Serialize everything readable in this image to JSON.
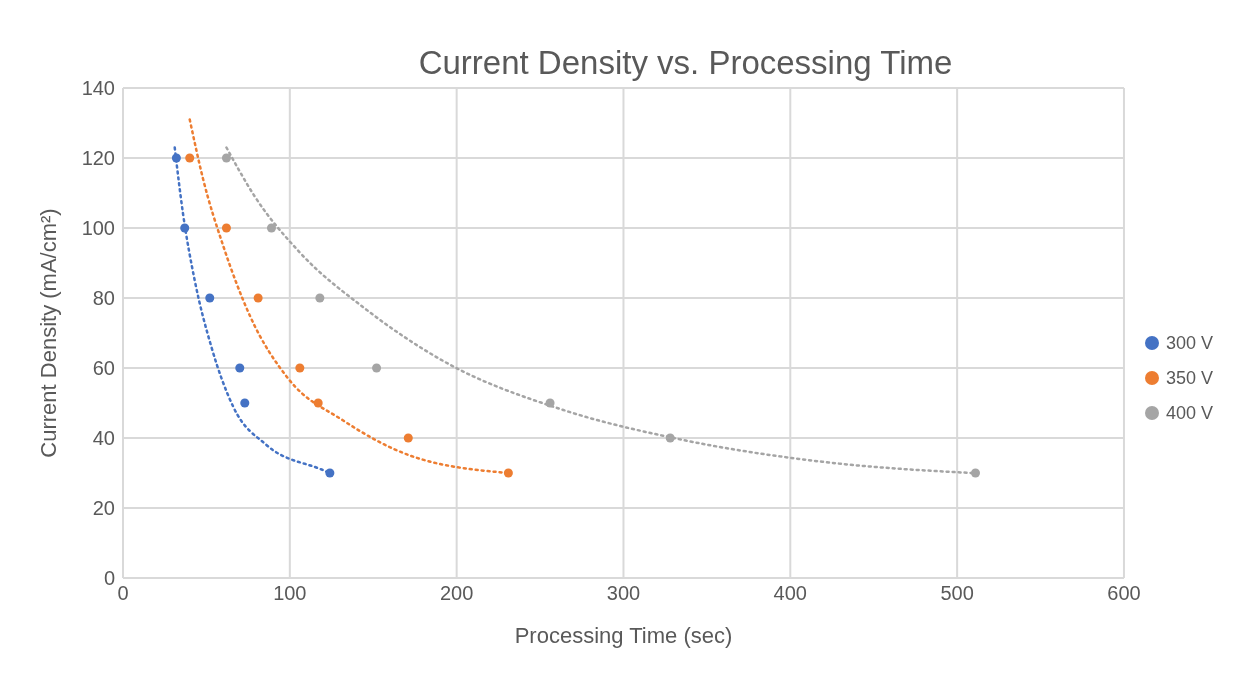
{
  "chart_data": {
    "type": "scatter",
    "title": "Current Density vs. Processing Time",
    "xlabel": "Processing Time (sec)",
    "ylabel": "Current Density (mA/cm²)",
    "xlim": [
      0,
      600
    ],
    "xticks": [
      0,
      100,
      200,
      300,
      400,
      500,
      600
    ],
    "ylim": [
      0,
      140
    ],
    "yticks": [
      0,
      20,
      40,
      60,
      80,
      100,
      120,
      140
    ],
    "grid": true,
    "legend": "right",
    "marker": "circle",
    "series": [
      {
        "name": "300 V",
        "color": "#4472c4",
        "x": [
          32,
          37,
          52,
          70,
          73,
          124
        ],
        "values": [
          120,
          100,
          80,
          60,
          50,
          30
        ]
      },
      {
        "name": "350 V",
        "color": "#ed7d31",
        "x": [
          40,
          62,
          81,
          106,
          117,
          171,
          231
        ],
        "values": [
          120,
          100,
          80,
          60,
          50,
          40,
          30
        ]
      },
      {
        "name": "400 V",
        "color": "#a5a5a5",
        "x": [
          62,
          89,
          118,
          152,
          256,
          328,
          511
        ],
        "values": [
          120,
          100,
          80,
          60,
          50,
          40,
          30
        ]
      },
      {
        "type": "line",
        "line_style": "dotted",
        "marker": "none",
        "color": "#4472c4",
        "x": [
          31,
          36,
          43,
          53,
          66,
          86,
          119,
          124
        ],
        "values": [
          123,
          104,
          85,
          66,
          49,
          38,
          31,
          30
        ]
      },
      {
        "type": "line",
        "line_style": "dotted",
        "marker": "none",
        "color": "#ed7d31",
        "x": [
          40,
          48,
          60,
          76,
          99,
          132,
          172,
          231
        ],
        "values": [
          131,
          114,
          95,
          75,
          57,
          45,
          35,
          30
        ]
      },
      {
        "type": "line",
        "line_style": "dotted",
        "marker": "none",
        "color": "#a5a5a5",
        "x": [
          62,
          79,
          106,
          145,
          192,
          264,
          330,
          423,
          509
        ],
        "values": [
          123,
          109,
          93,
          77,
          62,
          48,
          40,
          33,
          30
        ]
      }
    ]
  }
}
